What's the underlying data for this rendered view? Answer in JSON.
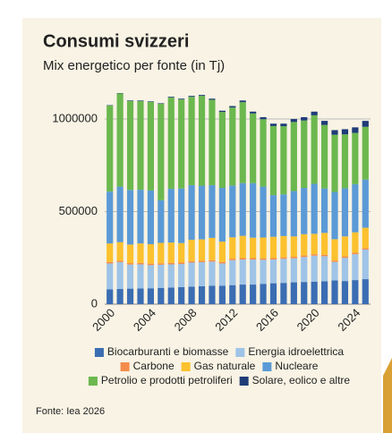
{
  "chart_data": {
    "type": "stacked_bar",
    "title": "Consumi svizzeri",
    "subtitle": "Mix energetico per fonte (in Tj)",
    "source": "Fonte: Iea 2026",
    "categories": [
      "2000",
      null,
      null,
      null,
      "2004",
      null,
      null,
      null,
      "2008",
      null,
      null,
      null,
      "2012",
      null,
      null,
      null,
      "2016",
      null,
      null,
      null,
      "2020",
      null,
      null,
      null,
      "2024",
      null
    ],
    "series": [
      {
        "name": "Biocarburanti e biomasse",
        "color": "#3b6db3",
        "values": [
          80000,
          82000,
          84000,
          85000,
          86000,
          88000,
          90000,
          92000,
          95000,
          97000,
          100000,
          100000,
          103000,
          106000,
          106000,
          110000,
          113000,
          115000,
          118000,
          120000,
          122000,
          124000,
          128000,
          125000,
          130000,
          135000
        ]
      },
      {
        "name": "Energia idroelettrica",
        "color": "#9fc4e7",
        "values": [
          140000,
          145000,
          130000,
          130000,
          125000,
          125000,
          125000,
          125000,
          130000,
          130000,
          130000,
          120000,
          135000,
          135000,
          135000,
          130000,
          128000,
          130000,
          130000,
          135000,
          140000,
          135000,
          100000,
          125000,
          140000,
          160000
        ]
      },
      {
        "name": "Carbone",
        "color": "#f48c4b",
        "values": [
          8000,
          8000,
          8000,
          8000,
          8000,
          8000,
          8000,
          8000,
          8000,
          8000,
          8000,
          8000,
          8000,
          8000,
          8000,
          8000,
          8000,
          8000,
          8000,
          8000,
          8000,
          8000,
          8000,
          8000,
          8000,
          8000
        ]
      },
      {
        "name": "Gas naturale",
        "color": "#fcc12e",
        "values": [
          100000,
          100000,
          100000,
          105000,
          105000,
          110000,
          110000,
          105000,
          115000,
          115000,
          120000,
          110000,
          115000,
          120000,
          110000,
          112000,
          115000,
          115000,
          110000,
          115000,
          110000,
          118000,
          115000,
          108000,
          110000,
          110000
        ]
      },
      {
        "name": "Nucleare",
        "color": "#5b9ad6",
        "values": [
          280000,
          300000,
          295000,
          290000,
          290000,
          230000,
          290000,
          295000,
          295000,
          290000,
          285000,
          290000,
          280000,
          285000,
          295000,
          275000,
          225000,
          225000,
          245000,
          250000,
          270000,
          240000,
          255000,
          260000,
          260000,
          260000
        ]
      },
      {
        "name": "Petrolio e prodotti petroliferi",
        "color": "#6cb84f",
        "values": [
          465000,
          503000,
          480000,
          479000,
          478000,
          521000,
          493000,
          481000,
          477000,
          485000,
          461000,
          410000,
          421000,
          437000,
          376000,
          364000,
          373000,
          368000,
          373000,
          364000,
          370000,
          343000,
          309000,
          291000,
          277000,
          285000
        ]
      },
      {
        "name": "Solare, eolico e altre",
        "color": "#1f3c78",
        "values": [
          2000,
          2000,
          3000,
          3000,
          3000,
          3000,
          4000,
          4000,
          5000,
          5000,
          6000,
          7000,
          8000,
          9000,
          10000,
          11000,
          13000,
          14000,
          16000,
          18000,
          20000,
          22000,
          25000,
          28000,
          30000,
          32000
        ]
      }
    ],
    "ylim": [
      0,
      1150000
    ],
    "yticks": [
      0,
      500000,
      1000000
    ],
    "grid": true
  }
}
